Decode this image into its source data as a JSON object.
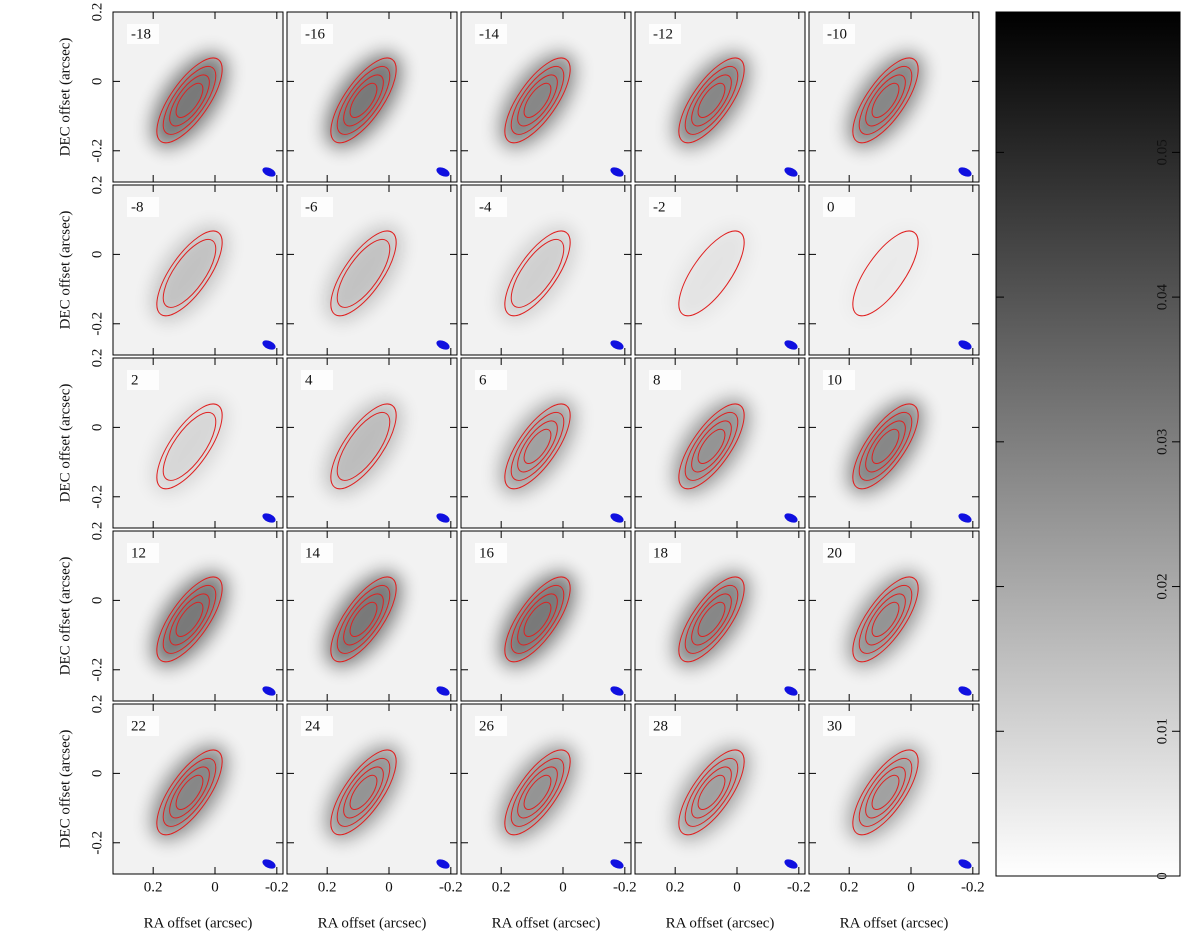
{
  "chart_data": {
    "type": "channel-map",
    "panels": [
      -18,
      -16,
      -14,
      -12,
      -10,
      -8,
      -6,
      -4,
      -2,
      0,
      2,
      4,
      6,
      8,
      10,
      12,
      14,
      16,
      18,
      20,
      22,
      24,
      26,
      28,
      30
    ],
    "xlabel": "RA offset (arcsec)",
    "ylabel": "DEC offset (arcsec)",
    "xlim": [
      0.33,
      -0.22
    ],
    "ylim": [
      -0.29,
      0.2
    ],
    "xticks": [
      0.2,
      0,
      -0.2
    ],
    "yticks": [
      -0.2,
      0,
      0.2
    ],
    "contour_color": "#e02020",
    "beam_color": "#1010e0",
    "colorbar": {
      "lim": [
        0,
        0.0597
      ],
      "ticks": [
        0,
        0.01,
        0.02,
        0.03,
        0.04,
        0.05
      ]
    }
  }
}
